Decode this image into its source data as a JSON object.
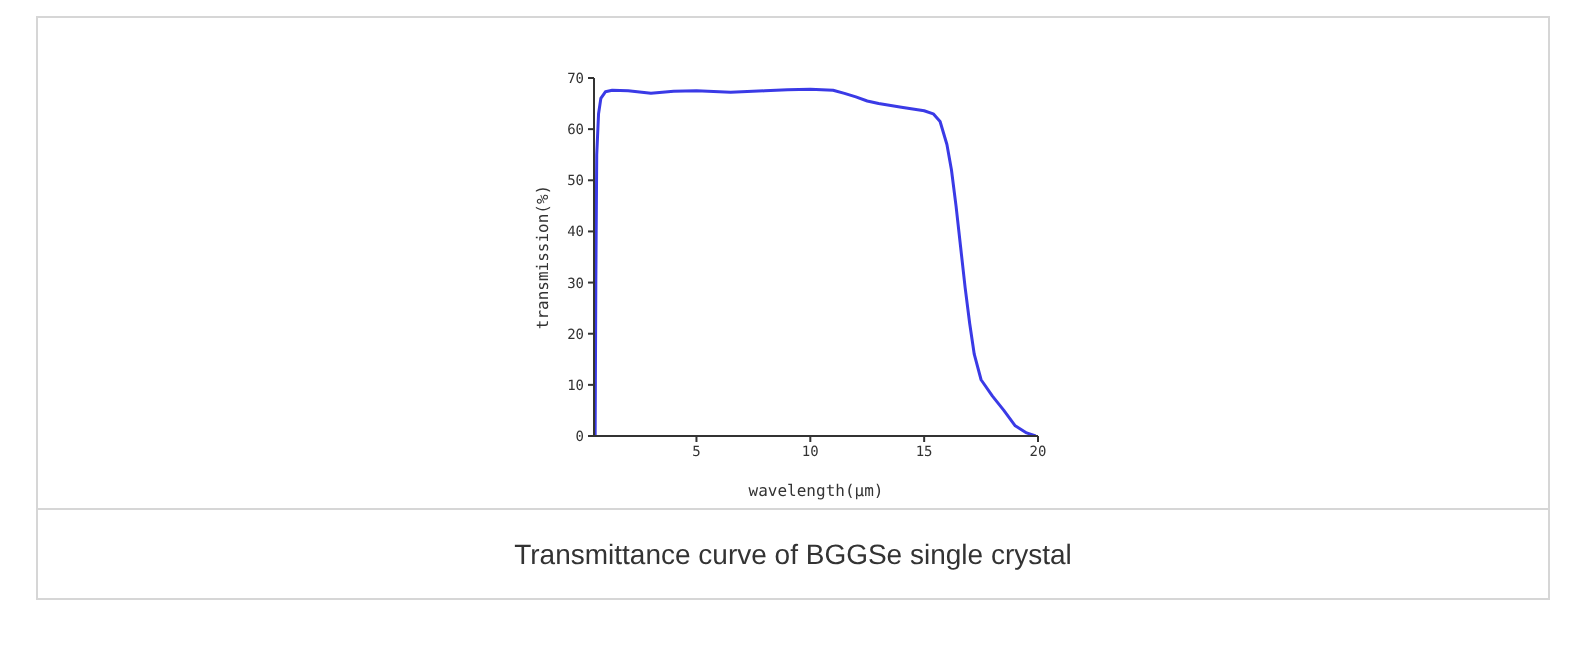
{
  "chart_data": {
    "type": "line",
    "xlabel": "wavelength(μm)",
    "ylabel": "transmission(%)",
    "annotations": [
      "Transmittance curve of BGGSe single crystal"
    ],
    "x": [
      0.55,
      0.58,
      0.62,
      0.7,
      0.8,
      1.0,
      1.3,
      2,
      3,
      4,
      5,
      6,
      6.5,
      8,
      9,
      10,
      10.5,
      11,
      11.5,
      12,
      12.5,
      13,
      14,
      15,
      15.4,
      15.7,
      16,
      16.2,
      16.4,
      16.6,
      16.8,
      17,
      17.2,
      17.5,
      18,
      18.5,
      19,
      19.5,
      19.9
    ],
    "series": [
      {
        "color": "#3a3ae6",
        "values": [
          0,
          30,
          55,
          63,
          66,
          67.3,
          67.6,
          67.5,
          67,
          67.4,
          67.5,
          67.3,
          67.2,
          67.5,
          67.7,
          67.8,
          67.7,
          67.6,
          67,
          66.3,
          65.5,
          65,
          64.3,
          63.6,
          63,
          61.5,
          57,
          52,
          45,
          37,
          29,
          22,
          16,
          11,
          7.8,
          5,
          2,
          0.6,
          0
        ]
      }
    ],
    "xlim": [
      0.5,
      20
    ],
    "xticks": [
      5,
      10,
      15,
      20
    ],
    "ylim": [
      0,
      70
    ],
    "yticks": [
      0,
      10,
      20,
      30,
      40,
      50,
      60,
      70
    ],
    "marker": "none",
    "line_style": "solid"
  }
}
